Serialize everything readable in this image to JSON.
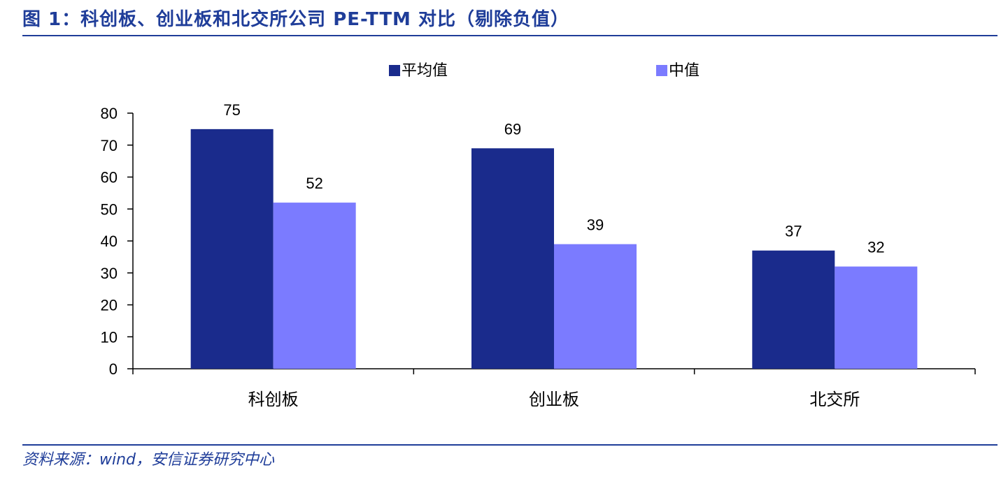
{
  "header": {
    "title": "图 1：科创板、创业板和北交所公司 PE-TTM 对比（剔除负值）"
  },
  "footer": {
    "source": "资料来源：wind，安信证券研究中心"
  },
  "colors": {
    "accent": "#1f3d99",
    "axis": "#000000"
  },
  "chart_data": {
    "type": "bar",
    "categories": [
      "科创板",
      "创业板",
      "北交所"
    ],
    "series": [
      {
        "name": "平均值",
        "values": [
          75,
          69,
          37
        ],
        "color": "#1a2b8c"
      },
      {
        "name": "中值",
        "values": [
          52,
          39,
          32
        ],
        "color": "#7b7bff"
      }
    ],
    "ylim": [
      0,
      80
    ],
    "yticks": [
      "0",
      "10",
      "20",
      "30",
      "40",
      "50",
      "60",
      "70",
      "80"
    ],
    "data_labels": true,
    "legend_position": "top-center",
    "grid": false
  }
}
